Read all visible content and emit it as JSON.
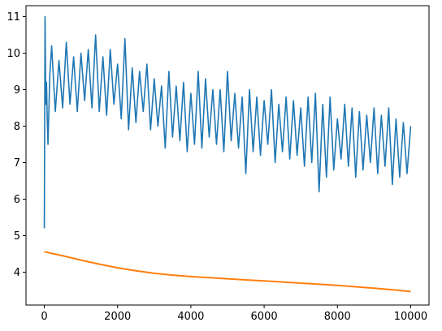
{
  "chart_data": {
    "type": "line",
    "title": "",
    "xlabel": "",
    "ylabel": "",
    "xlim": [
      -500,
      10500
    ],
    "ylim": [
      3.1,
      11.3
    ],
    "xticks": [
      0,
      2000,
      4000,
      6000,
      8000,
      10000
    ],
    "xtick_labels": [
      "0",
      "2000",
      "4000",
      "6000",
      "8000",
      "10000"
    ],
    "yticks": [
      4,
      5,
      6,
      7,
      8,
      9,
      10,
      11
    ],
    "ytick_labels": [
      "4",
      "5",
      "6",
      "7",
      "8",
      "9",
      "10",
      "11"
    ],
    "grid": false,
    "legend": "none",
    "series": [
      {
        "color": "#1f77b4",
        "description": "noisy series; values are per-step estimates",
        "x": [
          0,
          20,
          40,
          60,
          80,
          100,
          150,
          200,
          300,
          400,
          500,
          600,
          700,
          800,
          900,
          1000,
          1100,
          1200,
          1300,
          1400,
          1500,
          1600,
          1700,
          1800,
          1900,
          2000,
          2100,
          2200,
          2300,
          2400,
          2500,
          2600,
          2700,
          2800,
          2900,
          3000,
          3100,
          3200,
          3300,
          3400,
          3500,
          3600,
          3700,
          3800,
          3900,
          4000,
          4100,
          4200,
          4300,
          4400,
          4500,
          4600,
          4700,
          4800,
          4900,
          5000,
          5100,
          5200,
          5300,
          5400,
          5500,
          5600,
          5700,
          5800,
          5900,
          6000,
          6100,
          6200,
          6300,
          6400,
          6500,
          6600,
          6700,
          6800,
          6900,
          7000,
          7100,
          7200,
          7300,
          7400,
          7500,
          7600,
          7700,
          7800,
          7900,
          8000,
          8100,
          8200,
          8300,
          8400,
          8500,
          8600,
          8700,
          8800,
          8900,
          9000,
          9100,
          9200,
          9300,
          9400,
          9500,
          9600,
          9700,
          9800,
          9900,
          10000
        ],
        "y": [
          5.2,
          11.0,
          8.6,
          9.2,
          8.2,
          7.5,
          9.4,
          10.2,
          8.4,
          9.8,
          8.5,
          10.3,
          8.6,
          9.9,
          8.4,
          10.0,
          8.7,
          10.1,
          8.5,
          10.5,
          8.4,
          9.9,
          8.3,
          10.1,
          8.6,
          9.7,
          8.2,
          10.4,
          7.9,
          9.6,
          8.1,
          9.5,
          8.4,
          9.7,
          7.9,
          9.3,
          8.0,
          9.1,
          7.4,
          9.5,
          7.7,
          9.1,
          7.6,
          9.2,
          7.3,
          8.9,
          7.5,
          9.5,
          7.4,
          9.3,
          7.7,
          9.0,
          7.5,
          9.0,
          7.3,
          9.5,
          7.6,
          8.9,
          7.4,
          8.8,
          6.7,
          9.0,
          7.3,
          8.8,
          7.2,
          8.7,
          7.5,
          9.0,
          7.0,
          8.6,
          7.3,
          8.8,
          7.1,
          8.7,
          7.2,
          8.5,
          6.9,
          8.8,
          7.0,
          8.9,
          6.2,
          8.6,
          6.6,
          8.8,
          6.8,
          8.2,
          7.1,
          8.6,
          6.9,
          8.5,
          6.6,
          8.4,
          6.8,
          8.3,
          7.0,
          8.5,
          6.7,
          8.3,
          6.9,
          8.5,
          6.4,
          8.2,
          6.6,
          8.1,
          6.7,
          8.0
        ]
      },
      {
        "color": "#ff7f0e",
        "x": [
          0,
          500,
          1000,
          1500,
          2000,
          2500,
          3000,
          3500,
          4000,
          4500,
          5000,
          5500,
          6000,
          6500,
          7000,
          7500,
          8000,
          8500,
          9000,
          9500,
          10000
        ],
        "y": [
          4.56,
          4.45,
          4.33,
          4.22,
          4.12,
          4.04,
          3.97,
          3.92,
          3.88,
          3.85,
          3.82,
          3.79,
          3.76,
          3.73,
          3.7,
          3.67,
          3.64,
          3.6,
          3.56,
          3.52,
          3.47
        ]
      }
    ]
  }
}
